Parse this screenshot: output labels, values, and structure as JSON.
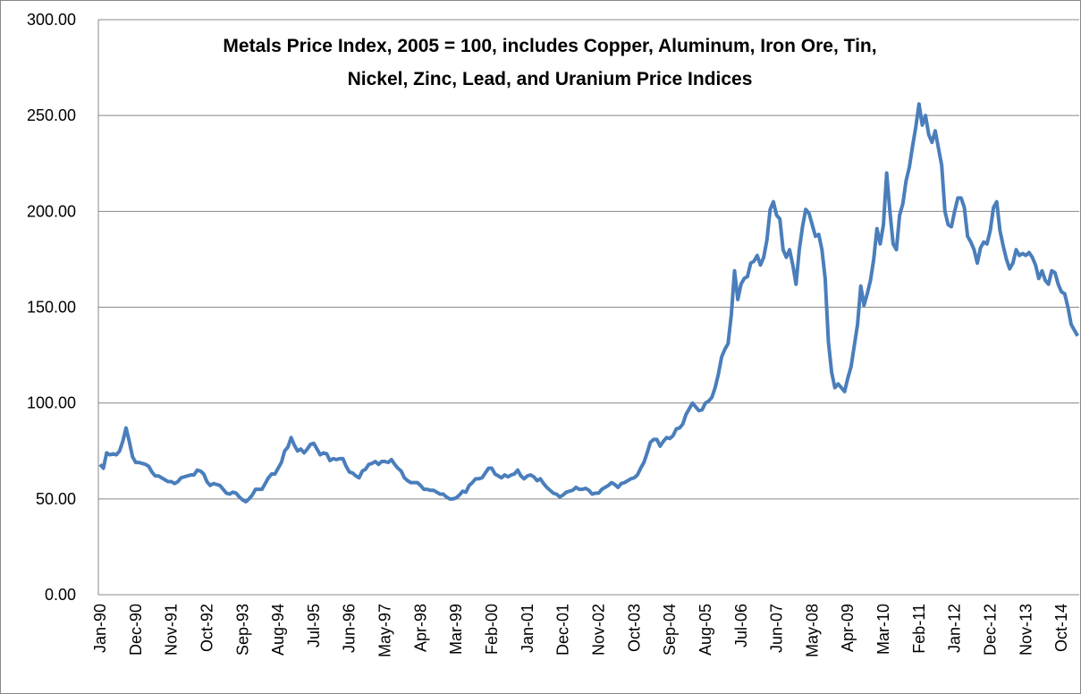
{
  "chart_data": {
    "type": "line",
    "title": [
      "Metals Price Index, 2005 = 100, includes Copper, Aluminum, Iron Ore, Tin,",
      "Nickel, Zinc, Lead, and Uranium Price Indices"
    ],
    "categories": [
      "Jan-90",
      null,
      null,
      null,
      null,
      null,
      null,
      null,
      null,
      null,
      null,
      "Dec-90",
      null,
      null,
      null,
      null,
      null,
      null,
      null,
      null,
      null,
      null,
      "Nov-91",
      null,
      null,
      null,
      null,
      null,
      null,
      null,
      null,
      null,
      null,
      "Oct-92",
      null,
      null,
      null,
      null,
      null,
      null,
      null,
      null,
      null,
      null,
      "Sep-93",
      null,
      null,
      null,
      null,
      null,
      null,
      null,
      null,
      null,
      null,
      "Aug-94",
      null,
      null,
      null,
      null,
      null,
      null,
      null,
      null,
      null,
      null,
      "Jul-95",
      null,
      null,
      null,
      null,
      null,
      null,
      null,
      null,
      null,
      null,
      "Jun-96",
      null,
      null,
      null,
      null,
      null,
      null,
      null,
      null,
      null,
      null,
      "May-97",
      null,
      null,
      null,
      null,
      null,
      null,
      null,
      null,
      null,
      null,
      "Apr-98",
      null,
      null,
      null,
      null,
      null,
      null,
      null,
      null,
      null,
      null,
      "Mar-99",
      null,
      null,
      null,
      null,
      null,
      null,
      null,
      null,
      null,
      null,
      "Feb-00",
      null,
      null,
      null,
      null,
      null,
      null,
      null,
      null,
      null,
      null,
      "Jan-01",
      null,
      null,
      null,
      null,
      null,
      null,
      null,
      null,
      null,
      null,
      "Dec-01",
      null,
      null,
      null,
      null,
      null,
      null,
      null,
      null,
      null,
      null,
      "Nov-02",
      null,
      null,
      null,
      null,
      null,
      null,
      null,
      null,
      null,
      null,
      "Oct-03",
      null,
      null,
      null,
      null,
      null,
      null,
      null,
      null,
      null,
      null,
      "Sep-04",
      null,
      null,
      null,
      null,
      null,
      null,
      null,
      null,
      null,
      null,
      "Aug-05",
      null,
      null,
      null,
      null,
      null,
      null,
      null,
      null,
      null,
      null,
      "Jul-06",
      null,
      null,
      null,
      null,
      null,
      null,
      null,
      null,
      null,
      null,
      "Jun-07",
      null,
      null,
      null,
      null,
      null,
      null,
      null,
      null,
      null,
      null,
      "May-08",
      null,
      null,
      null,
      null,
      null,
      null,
      null,
      null,
      null,
      null,
      "Apr-09",
      null,
      null,
      null,
      null,
      null,
      null,
      null,
      null,
      null,
      null,
      "Mar-10",
      null,
      null,
      null,
      null,
      null,
      null,
      null,
      null,
      null,
      null,
      "Feb-11",
      null,
      null,
      null,
      null,
      null,
      null,
      null,
      null,
      null,
      null,
      "Jan-12",
      null,
      null,
      null,
      null,
      null,
      null,
      null,
      null,
      null,
      null,
      "Dec-12",
      null,
      null,
      null,
      null,
      null,
      null,
      null,
      null,
      null,
      null,
      "Nov-13",
      null,
      null,
      null,
      null,
      null,
      null,
      null,
      null,
      null,
      null,
      "Oct-14",
      null,
      null,
      null,
      null,
      null
    ],
    "values": [
      68,
      66,
      74,
      73,
      73.5,
      73,
      75,
      80,
      87,
      80,
      72,
      69,
      69,
      68.5,
      68,
      67,
      64,
      62,
      62,
      61,
      60,
      59,
      59,
      58,
      59,
      61,
      61.5,
      62,
      62.5,
      62.5,
      65,
      64.5,
      63,
      59,
      57,
      58,
      57.5,
      57,
      55,
      53,
      52.5,
      53.5,
      53,
      51,
      49.5,
      48.5,
      50,
      52,
      55,
      55,
      55,
      58,
      61,
      63,
      63,
      66,
      69,
      75,
      77,
      82,
      78,
      75,
      76,
      74,
      76,
      78.5,
      79,
      76,
      73,
      74,
      73.5,
      70,
      71,
      70.5,
      71,
      71,
      67,
      64,
      63.5,
      62,
      61,
      64.5,
      65.5,
      68,
      68.5,
      69.5,
      68,
      69.5,
      69.5,
      69,
      70.5,
      68,
      66,
      64.5,
      61,
      59.5,
      58.5,
      58.5,
      58.5,
      57,
      55,
      55,
      54.5,
      54.5,
      53.5,
      52.5,
      52.5,
      51,
      50,
      50,
      50.5,
      52,
      54,
      53.5,
      57,
      58.5,
      60.5,
      60.5,
      61,
      63.5,
      66,
      66,
      63,
      62,
      61,
      62.5,
      61.5,
      62.5,
      63,
      65,
      62,
      60.5,
      62,
      62.5,
      61.5,
      59.5,
      60.5,
      58,
      56,
      54.5,
      53,
      52.5,
      51,
      52,
      53.5,
      54,
      54.5,
      56,
      55,
      55,
      55.5,
      54.5,
      52.5,
      53,
      53,
      55,
      56,
      57,
      58.5,
      57.5,
      56,
      58,
      58.5,
      59.5,
      60.5,
      61,
      62.5,
      66,
      69,
      74,
      79.5,
      81,
      81,
      77.5,
      80,
      82,
      81.5,
      83,
      86.5,
      87,
      89,
      94,
      97,
      100,
      98,
      96,
      96.5,
      100,
      101,
      103,
      108,
      115,
      124,
      128,
      131,
      146,
      169,
      154,
      162,
      165,
      166,
      173,
      174,
      177,
      172,
      176,
      185,
      201,
      205,
      198,
      196,
      180,
      176,
      180,
      172,
      162,
      180,
      192,
      201,
      199,
      193,
      187,
      188,
      180,
      165,
      132,
      116,
      108,
      110,
      108,
      106,
      113,
      119,
      130,
      141,
      161,
      151,
      157,
      164,
      175,
      191,
      183,
      193,
      220,
      200,
      183,
      180,
      198,
      204,
      216,
      223,
      234,
      244,
      256,
      245,
      250,
      240,
      236,
      242,
      233,
      224,
      200,
      193,
      192,
      200,
      207,
      207,
      202,
      187,
      184,
      180,
      173,
      181,
      184,
      183,
      190,
      202,
      205,
      190,
      182,
      175,
      170,
      173,
      180,
      177,
      178,
      177,
      178.5,
      176,
      172,
      165,
      169,
      164,
      162,
      169,
      168,
      162,
      158,
      157,
      150,
      141,
      138,
      135
    ],
    "color": "#4a7ebb",
    "ylim": [
      0,
      300
    ],
    "yticks": [
      {
        "value": 0,
        "label": "0.00"
      },
      {
        "value": 50,
        "label": "50.00"
      },
      {
        "value": 100,
        "label": "100.00"
      },
      {
        "value": 150,
        "label": "150.00"
      },
      {
        "value": 200,
        "label": "200.00"
      },
      {
        "value": 250,
        "label": "250.00"
      },
      {
        "value": 300,
        "label": "300.00"
      }
    ],
    "grid": true
  }
}
